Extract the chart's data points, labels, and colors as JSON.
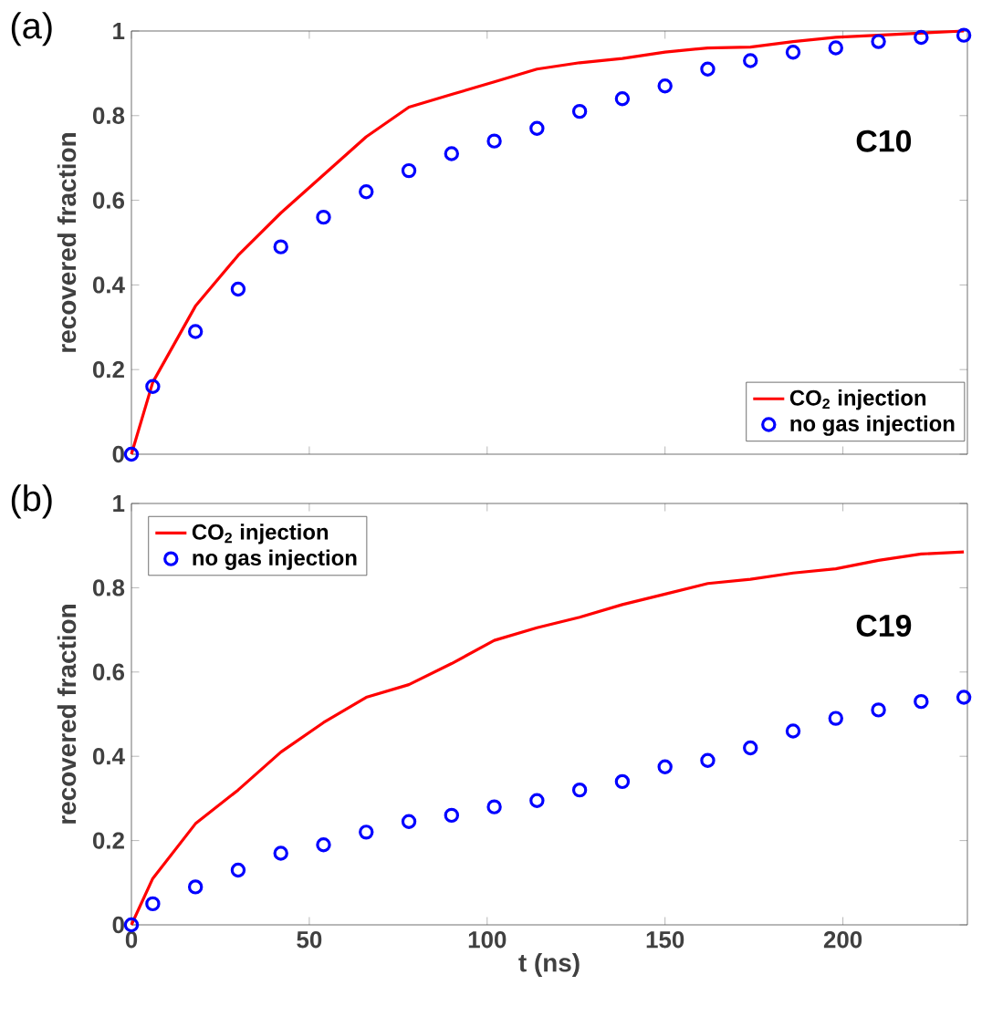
{
  "chart_data": [
    {
      "type": "line",
      "ylabel": "recovered fraction",
      "annotations": [
        "(a)",
        "C10"
      ],
      "xlim": [
        0,
        235
      ],
      "ylim": [
        0,
        1
      ],
      "xticks": [
        0,
        50,
        100,
        150,
        200
      ],
      "yticks": [
        0,
        0.2,
        0.4,
        0.6,
        0.8,
        1
      ],
      "tick_labels": "y",
      "legend": "bottom right",
      "series": [
        {
          "name": "CO$_{2}$ injection",
          "marker": "none",
          "color": "#ff0000",
          "x": [
            0,
            6,
            18,
            30,
            42,
            54,
            66,
            78,
            90,
            102,
            114,
            126,
            138,
            150,
            162,
            174,
            186,
            198,
            210,
            222,
            234
          ],
          "values": [
            0,
            0.17,
            0.35,
            0.47,
            0.57,
            0.66,
            0.75,
            0.82,
            0.85,
            0.88,
            0.91,
            0.925,
            0.935,
            0.95,
            0.96,
            0.962,
            0.975,
            0.985,
            0.99,
            0.995,
            1.0
          ]
        },
        {
          "name": "no gas injection",
          "type": "scatter",
          "marker": "circle",
          "color": "#0000ff",
          "x": [
            0,
            6,
            18,
            30,
            42,
            54,
            66,
            78,
            90,
            102,
            114,
            126,
            138,
            150,
            162,
            174,
            186,
            198,
            210,
            222,
            234
          ],
          "values": [
            0,
            0.16,
            0.29,
            0.39,
            0.49,
            0.56,
            0.62,
            0.67,
            0.71,
            0.74,
            0.77,
            0.81,
            0.84,
            0.87,
            0.91,
            0.93,
            0.95,
            0.96,
            0.975,
            0.985,
            0.99
          ]
        }
      ]
    },
    {
      "type": "line",
      "xlabel": "t (ns)",
      "ylabel": "recovered fraction",
      "annotations": [
        "(b)",
        "C19"
      ],
      "xlim": [
        0,
        235
      ],
      "ylim": [
        0,
        1
      ],
      "xticks": [
        0,
        50,
        100,
        150,
        200
      ],
      "yticks": [
        0,
        0.2,
        0.4,
        0.6,
        0.8,
        1
      ],
      "legend": "top left",
      "series": [
        {
          "name": "CO$_{2}$ injection",
          "marker": "none",
          "color": "#ff0000",
          "x": [
            0,
            6,
            18,
            30,
            42,
            54,
            66,
            78,
            90,
            102,
            114,
            126,
            138,
            150,
            162,
            174,
            186,
            198,
            210,
            222,
            234
          ],
          "values": [
            0,
            0.11,
            0.24,
            0.32,
            0.41,
            0.48,
            0.54,
            0.57,
            0.62,
            0.675,
            0.705,
            0.73,
            0.76,
            0.785,
            0.81,
            0.82,
            0.835,
            0.845,
            0.865,
            0.88,
            0.885
          ]
        },
        {
          "name": "no gas injection",
          "type": "scatter",
          "marker": "circle",
          "color": "#0000ff",
          "x": [
            0,
            6,
            18,
            30,
            42,
            54,
            66,
            78,
            90,
            102,
            114,
            126,
            138,
            150,
            162,
            174,
            186,
            198,
            210,
            222,
            234
          ],
          "values": [
            0,
            0.05,
            0.09,
            0.13,
            0.17,
            0.19,
            0.22,
            0.245,
            0.26,
            0.28,
            0.295,
            0.32,
            0.34,
            0.375,
            0.39,
            0.42,
            0.46,
            0.49,
            0.51,
            0.53,
            0.54
          ]
        }
      ]
    }
  ]
}
